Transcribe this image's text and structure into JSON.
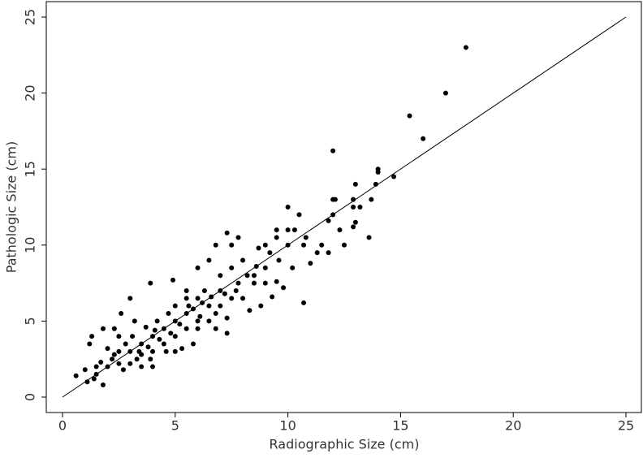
{
  "chart_data": {
    "type": "scatter",
    "xlabel": "Radiographic Size (cm)",
    "ylabel": "Pathologic Size (cm)",
    "xlim": [
      0,
      25
    ],
    "ylim": [
      0,
      25
    ],
    "xticks": [
      0,
      5,
      10,
      15,
      20,
      25
    ],
    "yticks": [
      0,
      5,
      10,
      15,
      20,
      25
    ],
    "series": [
      {
        "type": "scatter",
        "color": "#000000",
        "x": [
          17.9,
          17,
          15.4,
          16,
          12,
          14.7,
          14,
          14,
          13.9,
          13,
          12.9,
          12,
          12.1,
          13.7,
          12,
          11.8,
          12.9,
          13.2,
          13,
          12.9,
          13.6,
          12.3,
          11.5,
          11.3,
          11.8,
          12.5,
          10.7,
          10.5,
          10,
          10,
          10,
          10.3,
          10.8,
          10.7,
          9.5,
          9,
          9.5,
          9.2,
          8.7,
          7.8,
          7.3,
          7.5,
          6.8,
          8,
          8.5,
          8.5,
          9,
          9.5,
          9,
          9.3,
          8,
          8.8,
          7.5,
          7.7,
          7.5,
          7.3,
          7,
          6.5,
          6,
          6.3,
          6,
          6.5,
          5.5,
          5,
          5.5,
          4.9,
          3.9,
          3,
          2.6,
          3.2,
          2.5,
          1.8,
          2.3,
          1.3,
          1.2,
          0.6,
          1.1,
          1.5,
          1.8,
          2,
          1.5,
          1,
          2.2,
          2.5,
          3,
          3,
          3.5,
          3.5,
          4,
          4,
          4.5,
          4.5,
          5,
          5,
          5.5,
          5.5,
          6,
          6,
          4,
          3.5,
          5,
          6.5,
          7,
          7,
          6.8,
          6.8,
          5.8,
          4.7,
          4.2,
          3.7,
          2.8,
          2.3,
          1.7,
          1.4,
          2.7,
          3.3,
          3.8,
          4.3,
          4.8,
          5.2,
          5.8,
          6.2,
          2,
          2.5,
          3.1,
          3.4,
          3.9,
          4.1,
          4.6,
          5.3,
          5.6,
          6.1,
          6.6,
          7.2,
          7.8,
          8.2,
          8.6,
          9.6,
          10.2,
          9.8,
          8.3,
          7.3,
          11
        ],
        "values": [
          23,
          20,
          18.5,
          17,
          16.2,
          14.5,
          15,
          14.8,
          14,
          14,
          13,
          13,
          13,
          13,
          12,
          11.6,
          12.5,
          12.5,
          11.5,
          11.2,
          10.5,
          11,
          10,
          9.5,
          9.5,
          10,
          6.2,
          12,
          12.5,
          11,
          10,
          11,
          10.5,
          10,
          11,
          10,
          10.5,
          9.5,
          9.8,
          10.5,
          10.8,
          10,
          10,
          9,
          8,
          7.5,
          7.5,
          7.6,
          8.5,
          6.6,
          6.5,
          6,
          6.5,
          7,
          8.5,
          4.2,
          8,
          9,
          8.5,
          7,
          6.5,
          6,
          6.5,
          6,
          7,
          7.7,
          7.5,
          6.5,
          5.5,
          5,
          4,
          4.5,
          4.5,
          4,
          3.5,
          1.4,
          1,
          1.5,
          0.8,
          2,
          2,
          1.8,
          2.5,
          3,
          3,
          2.2,
          3.5,
          2.8,
          4,
          3,
          4.5,
          3.5,
          5,
          4,
          5.5,
          4.5,
          5,
          4.5,
          2,
          2,
          3,
          5,
          6,
          7,
          5.5,
          4.5,
          3.5,
          5.5,
          5,
          4.6,
          3.5,
          2.8,
          2.3,
          1.2,
          1.8,
          2.5,
          3.3,
          3.8,
          4.2,
          4.8,
          5.8,
          6.2,
          3.2,
          2.2,
          4,
          3,
          2.5,
          4.4,
          3,
          3.2,
          6,
          5.3,
          6.6,
          6.8,
          7.5,
          8,
          8.6,
          9,
          8.5,
          7.2,
          5.7,
          5.2,
          8.8
        ]
      },
      {
        "type": "line",
        "color": "#000000",
        "x": [
          0,
          25
        ],
        "values": [
          0,
          25
        ]
      }
    ]
  }
}
